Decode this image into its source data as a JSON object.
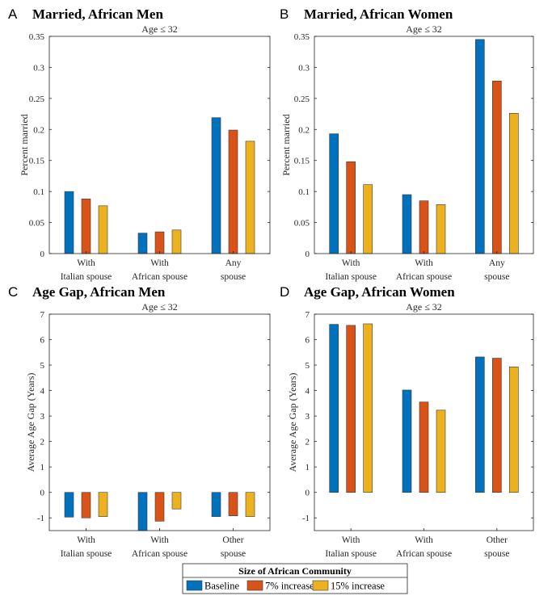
{
  "chart_data": [
    {
      "type": "bar",
      "letter": "A",
      "title": "Married, African Men",
      "subtitle": "Age ≤ 32",
      "ylabel": "Percent married",
      "xlabel": "",
      "categories": [
        [
          "With",
          "Italian spouse"
        ],
        [
          "With",
          "African spouse"
        ],
        [
          "Any",
          "spouse"
        ]
      ],
      "ylim": [
        0,
        0.35
      ],
      "yticks": [
        "0",
        "0.05",
        "0.1",
        "0.15",
        "0.2",
        "0.25",
        "0.3",
        "0.35"
      ],
      "series": [
        {
          "name": "Baseline",
          "values": [
            0.1,
            0.033,
            0.219
          ]
        },
        {
          "name": "7% increase",
          "values": [
            0.088,
            0.035,
            0.199
          ]
        },
        {
          "name": "15% increase",
          "values": [
            0.077,
            0.038,
            0.181
          ]
        }
      ]
    },
    {
      "type": "bar",
      "letter": "B",
      "title": "Married, African Women",
      "subtitle": "Age ≤ 32",
      "ylabel": "Percent married",
      "xlabel": "",
      "categories": [
        [
          "With",
          "Italian spouse"
        ],
        [
          "With",
          "African spouse"
        ],
        [
          "Any",
          "spouse"
        ]
      ],
      "ylim": [
        0,
        0.35
      ],
      "yticks": [
        "0",
        "0.05",
        "0.1",
        "0.15",
        "0.2",
        "0.25",
        "0.3",
        "0.35"
      ],
      "series": [
        {
          "name": "Baseline",
          "values": [
            0.193,
            0.095,
            0.345
          ]
        },
        {
          "name": "7% increase",
          "values": [
            0.148,
            0.085,
            0.278
          ]
        },
        {
          "name": "15% increase",
          "values": [
            0.111,
            0.079,
            0.226
          ]
        }
      ]
    },
    {
      "type": "bar",
      "letter": "C",
      "title": "Age Gap, African Men",
      "subtitle": "Age ≤ 32",
      "ylabel": "Average Age Gap (Years)",
      "xlabel": "",
      "categories": [
        [
          "With",
          "Italian spouse"
        ],
        [
          "With",
          "African spouse"
        ],
        [
          "Other",
          "spouse"
        ]
      ],
      "ylim": [
        -1.5,
        7
      ],
      "yticks": [
        "-1",
        "0",
        "1",
        "2",
        "3",
        "4",
        "5",
        "6",
        "7"
      ],
      "series": [
        {
          "name": "Baseline",
          "values": [
            -0.97,
            -1.5,
            -0.95
          ]
        },
        {
          "name": "7% increase",
          "values": [
            -1.0,
            -1.13,
            -0.92
          ]
        },
        {
          "name": "15% increase",
          "values": [
            -0.95,
            -0.65,
            -0.95
          ]
        }
      ]
    },
    {
      "type": "bar",
      "letter": "D",
      "title": "Age Gap, African Women",
      "subtitle": "Age ≤ 32",
      "ylabel": "Average Age Gap (Years)",
      "xlabel": "",
      "categories": [
        [
          "With",
          "Italian spouse"
        ],
        [
          "With",
          "African spouse"
        ],
        [
          "Other",
          "spouse"
        ]
      ],
      "ylim": [
        -1.5,
        7
      ],
      "yticks": [
        "-1",
        "0",
        "1",
        "2",
        "3",
        "4",
        "5",
        "6",
        "7"
      ],
      "series": [
        {
          "name": "Baseline",
          "values": [
            6.6,
            4.02,
            5.32
          ]
        },
        {
          "name": "7% increase",
          "values": [
            6.56,
            3.55,
            5.27
          ]
        },
        {
          "name": "15% increase",
          "values": [
            6.62,
            3.23,
            4.93
          ]
        }
      ]
    }
  ],
  "legend": {
    "title": "Size of African Community",
    "items": [
      "Baseline",
      "7% increase",
      "15% increase"
    ],
    "placement": "bottom-center"
  },
  "colors": {
    "Baseline": "#0072BD",
    "7% increase": "#D95319",
    "15% increase": "#EDB120",
    "bar_edge": "#3a3a3a"
  }
}
